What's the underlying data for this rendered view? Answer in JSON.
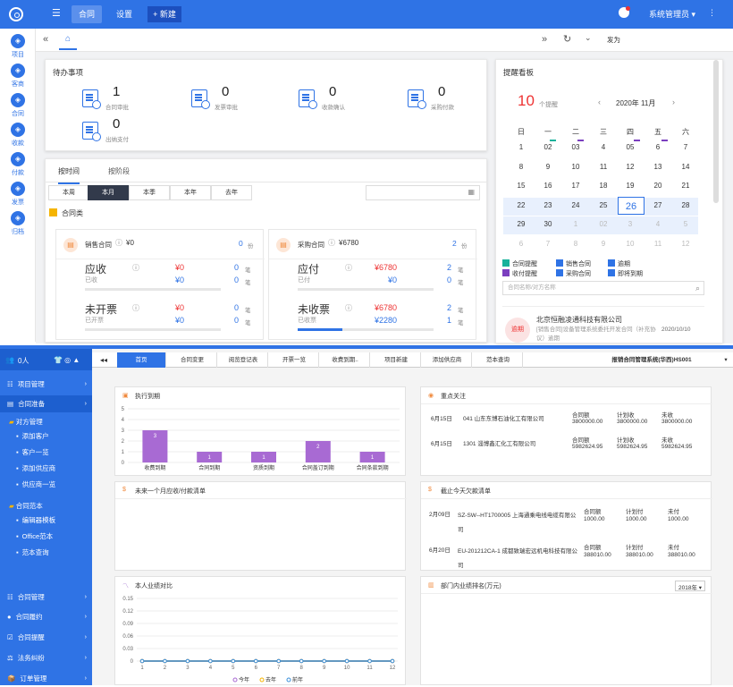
{
  "top": {
    "nav": [
      "合同",
      "设置"
    ],
    "new_btn": "+ 新建",
    "user": "系统管理员 ▾",
    "more": "⋮"
  },
  "left_nav": [
    "项目",
    "客商",
    "合同",
    "收款",
    "付款",
    "发票",
    "归档"
  ],
  "pagebar": {
    "role": "发为"
  },
  "todo": {
    "title": "待办事项",
    "items": [
      {
        "n": "1",
        "label": "合同审批"
      },
      {
        "n": "0",
        "label": "发票审批"
      },
      {
        "n": "0",
        "label": "收款确认"
      },
      {
        "n": "0",
        "label": "采购付款"
      },
      {
        "n": "0",
        "label": "出纳支付"
      }
    ]
  },
  "filter": {
    "tabs": [
      "按时间",
      "按阶段"
    ],
    "segs": [
      "本周",
      "本月",
      "本季",
      "本年",
      "去年"
    ],
    "category": "合同类"
  },
  "sales": {
    "title": "销售合同",
    "amount": "¥0",
    "count": "0",
    "unit": "份",
    "r1": {
      "label": "应收",
      "sub": "已收",
      "v1": "¥0",
      "v2": "¥0",
      "c1": "0",
      "c2": "0"
    },
    "r2": {
      "label": "未开票",
      "sub": "已开票",
      "v1": "¥0",
      "v2": "¥0",
      "c1": "0",
      "c2": "0"
    }
  },
  "purchase": {
    "title": "采购合同",
    "amount": "¥6780",
    "count": "2",
    "unit": "份",
    "r1": {
      "label": "应付",
      "sub": "已付",
      "v1": "¥6780",
      "v2": "¥0",
      "c1": "2",
      "c2": "0"
    },
    "r2": {
      "label": "未收票",
      "sub": "已收票",
      "v1": "¥6780",
      "v2": "¥2280",
      "c1": "2",
      "c2": "1"
    }
  },
  "stroke_unit": "笔",
  "reminder": {
    "title": "提醒看板",
    "count": "10",
    "count_label": "个提醒",
    "month": "2020年 11月",
    "weekdays": [
      "日",
      "一",
      "二",
      "三",
      "四",
      "五",
      "六"
    ],
    "weeks": [
      [
        "1",
        "02",
        "03",
        "4",
        "05",
        "6",
        "7"
      ],
      [
        "8",
        "9",
        "10",
        "11",
        "12",
        "13",
        "14"
      ],
      [
        "15",
        "16",
        "17",
        "18",
        "19",
        "20",
        "21"
      ],
      [
        "22",
        "23",
        "24",
        "25",
        "26",
        "27",
        "28"
      ],
      [
        "29",
        "30",
        "1",
        "02",
        "3",
        "4",
        "5"
      ],
      [
        "6",
        "7",
        "8",
        "9",
        "10",
        "11",
        "12"
      ]
    ],
    "legend": [
      "合同提醒",
      "销售合同",
      "逾期",
      "收付提醒",
      "采购合同",
      "即将到期"
    ],
    "search": "合同名称/对方名称",
    "item": {
      "company": "北京恒融凌通科技有限公司",
      "date": "2020/10/10",
      "desc": "[销售合同]设备管理系统委托开发合同（补充协议）逾期",
      "badge": "逾期"
    }
  },
  "bottom": {
    "user": "0人",
    "menu": [
      "项目管理",
      "合同准备",
      "合同管理",
      "合同履约",
      "合同提醒",
      "法务纠纷",
      "订单管理"
    ],
    "sub_groups": [
      {
        "title": "对方管理",
        "items": [
          "添加客户",
          "客户一览",
          "添加供应商",
          "供应商一览"
        ]
      },
      {
        "title": "合同范本",
        "items": [
          "编辑器模板",
          "Office范本",
          "范本查询"
        ]
      }
    ],
    "tabs": [
      "首页",
      "合同变更",
      "阅览登记表",
      "开票一览",
      "收费到期..",
      "项目新建",
      "添加供应商",
      "范本查询"
    ],
    "system": "报销合同管理系统(华西)HS001",
    "expiry": {
      "title": "执行到期",
      "ymax": "5",
      "yticks": [
        "5",
        "4",
        "3",
        "2",
        "1",
        "0"
      ]
    },
    "focus": {
      "title": "重点关注",
      "rows": [
        {
          "date": "6月15日",
          "name": "041 山东东博石油化工有限公司",
          "h": [
            "合同额",
            "计划收",
            "未收"
          ],
          "v": [
            "3800000.00",
            "3800000.00",
            "3800000.00"
          ]
        },
        {
          "date": "6月15日",
          "name": "1301 淄博鑫汇化工有限公司",
          "h": [
            "合同额",
            "计划收",
            "未收"
          ],
          "v": [
            "5982624.95",
            "5982624.95",
            "5982624.95"
          ]
        }
      ]
    },
    "upcoming": {
      "title": "未来一个月应收/付款清单"
    },
    "arrears": {
      "title": "截止今天欠款清单",
      "rows": [
        {
          "date": "2月09日",
          "name": "SZ-SW--HT1700005 上海通乘电线电缆有限公司",
          "h": [
            "合同额",
            "计划付",
            "未付"
          ],
          "v": [
            "1000.00",
            "1000.00",
            "1000.00"
          ]
        },
        {
          "date": "6月20日",
          "name": "EU-201212CA-1 成都致瑞宏远机电科技有限公司",
          "h": [
            "合同额",
            "计划付",
            "未付"
          ],
          "v": [
            "388010.00",
            "388010.00",
            "388010.00"
          ]
        }
      ]
    },
    "perf": {
      "title": "本人业绩对比",
      "legend": [
        "今年",
        "去年",
        "前年"
      ]
    },
    "rank": {
      "title": "部门内业绩排名(万元)",
      "year": "2018年 ▾"
    }
  },
  "chart_data": [
    {
      "type": "bar",
      "categories": [
        "收费到期",
        "合同到期",
        "资质到期",
        "合同盖订到期",
        "合同条款到期"
      ],
      "values": [
        3,
        1,
        1,
        2,
        1
      ],
      "ylim": [
        0,
        5
      ]
    },
    {
      "type": "line",
      "x": [
        1,
        2,
        3,
        4,
        5,
        6,
        7,
        8,
        9,
        10,
        11,
        12
      ],
      "series": [
        {
          "name": "今年",
          "values": [
            0,
            0,
            0,
            0,
            0,
            0,
            0,
            0,
            0,
            0,
            0,
            0
          ]
        },
        {
          "name": "去年",
          "values": [
            0,
            0,
            0,
            0,
            0,
            0,
            0,
            0,
            0,
            0,
            0,
            0
          ]
        },
        {
          "name": "前年",
          "values": [
            0,
            0,
            0,
            0,
            0,
            0,
            0,
            0,
            0,
            0,
            0,
            0
          ]
        }
      ],
      "ylim": [
        0,
        0.15
      ],
      "yticks": [
        "0.15",
        "0.12",
        "0.09",
        "0.06",
        "0.03",
        "0"
      ]
    }
  ]
}
